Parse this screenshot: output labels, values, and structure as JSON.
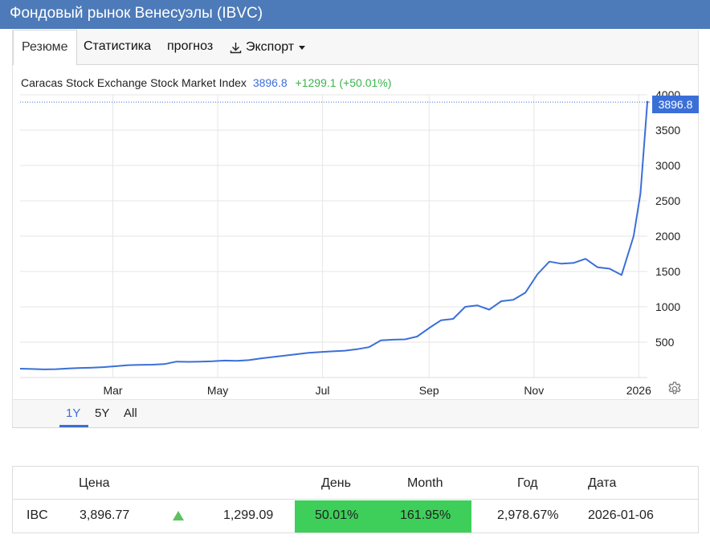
{
  "page_title": "Фондовый рынок Венесуэлы (IBVC)",
  "tabs": [
    {
      "label": "Резюме",
      "active": true
    },
    {
      "label": "Статистика"
    },
    {
      "label": "прогноз"
    },
    {
      "label": "Экспорт",
      "icon": "download-icon",
      "dropdown": true
    }
  ],
  "chart_header": {
    "name": "Caracas Stock Exchange Stock Market Index",
    "last": "3896.8",
    "change": "+1299.1 (+50.01%)"
  },
  "last_badge": "3896.8",
  "colors": {
    "line": "#3b6fd8",
    "up": "#39b54a",
    "highlight": "#3ecf5a",
    "header": "#4d7ab8"
  },
  "chart_data": {
    "type": "line",
    "series": [
      {
        "values": [
          [
            "2025-01-06",
            125
          ],
          [
            "2025-01-13",
            120
          ],
          [
            "2025-01-20",
            115
          ],
          [
            "2025-01-27",
            118
          ],
          [
            "2025-02-03",
            128
          ],
          [
            "2025-02-10",
            135
          ],
          [
            "2025-02-17",
            140
          ],
          [
            "2025-02-24",
            148
          ],
          [
            "2025-03-03",
            160
          ],
          [
            "2025-03-10",
            175
          ],
          [
            "2025-03-17",
            178
          ],
          [
            "2025-03-24",
            182
          ],
          [
            "2025-03-31",
            190
          ],
          [
            "2025-04-07",
            225
          ],
          [
            "2025-04-14",
            222
          ],
          [
            "2025-04-21",
            225
          ],
          [
            "2025-04-28",
            230
          ],
          [
            "2025-05-05",
            240
          ],
          [
            "2025-05-12",
            235
          ],
          [
            "2025-05-19",
            245
          ],
          [
            "2025-05-26",
            270
          ],
          [
            "2025-06-02",
            290
          ],
          [
            "2025-06-09",
            310
          ],
          [
            "2025-06-16",
            330
          ],
          [
            "2025-06-23",
            350
          ],
          [
            "2025-06-30",
            360
          ],
          [
            "2025-07-07",
            370
          ],
          [
            "2025-07-14",
            380
          ],
          [
            "2025-07-21",
            400
          ],
          [
            "2025-07-28",
            430
          ],
          [
            "2025-08-04",
            525
          ],
          [
            "2025-08-11",
            535
          ],
          [
            "2025-08-18",
            540
          ],
          [
            "2025-08-25",
            580
          ],
          [
            "2025-09-01",
            700
          ],
          [
            "2025-09-08",
            810
          ],
          [
            "2025-09-15",
            830
          ],
          [
            "2025-09-22",
            1000
          ],
          [
            "2025-09-29",
            1020
          ],
          [
            "2025-10-06",
            960
          ],
          [
            "2025-10-13",
            1080
          ],
          [
            "2025-10-20",
            1100
          ],
          [
            "2025-10-27",
            1200
          ],
          [
            "2025-11-03",
            1460
          ],
          [
            "2025-11-10",
            1640
          ],
          [
            "2025-11-17",
            1610
          ],
          [
            "2025-11-24",
            1620
          ],
          [
            "2025-12-01",
            1680
          ],
          [
            "2025-12-08",
            1560
          ],
          [
            "2025-12-15",
            1540
          ],
          [
            "2025-12-22",
            1450
          ],
          [
            "2025-12-29",
            2000
          ],
          [
            "2026-01-02",
            2600
          ],
          [
            "2026-01-06",
            3896.8
          ]
        ]
      }
    ],
    "x_ticks": [
      "Mar",
      "May",
      "Jul",
      "Sep",
      "Nov",
      "2026"
    ],
    "x_tick_dates": [
      "2025-03-01",
      "2025-05-01",
      "2025-07-01",
      "2025-09-01",
      "2025-11-01",
      "2026-01-01"
    ],
    "x_range": [
      "2025-01-06",
      "2026-01-06"
    ],
    "y_ticks": [
      500,
      1000,
      1500,
      2000,
      2500,
      3000,
      3500,
      4000
    ],
    "ylim": [
      0,
      4000
    ],
    "grid": true
  },
  "ranges": [
    {
      "label": "1Y",
      "active": true
    },
    {
      "label": "5Y"
    },
    {
      "label": "All"
    }
  ],
  "table": {
    "headers": [
      "Цена",
      "День",
      "Month",
      "Год",
      "Дата"
    ],
    "row": {
      "symbol": "IBC",
      "price": "3,896.77",
      "change": "1,299.09",
      "day": "50.01%",
      "month": "161.95%",
      "year": "2,978.67%",
      "date": "2026-01-06"
    }
  }
}
